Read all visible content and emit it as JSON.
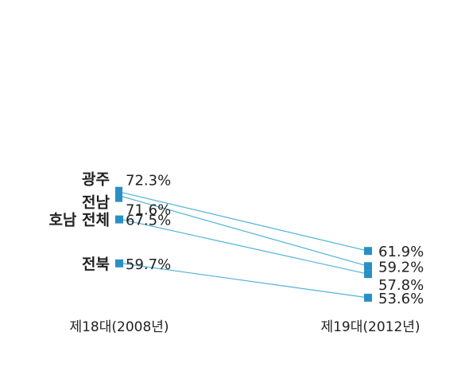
{
  "chart_data": {
    "type": "line",
    "categories": [
      "제18대(2008년)",
      "제19대(2012년)"
    ],
    "series": [
      {
        "name": "광주",
        "values": [
          72.3,
          61.9
        ],
        "labels": [
          "72.3%",
          "61.9%"
        ]
      },
      {
        "name": "전남",
        "values": [
          71.6,
          59.2
        ],
        "labels": [
          "71.6%",
          "59.2%"
        ]
      },
      {
        "name": "호남 전체",
        "values": [
          67.5,
          57.8
        ],
        "labels": [
          "67.5%",
          "57.8%"
        ]
      },
      {
        "name": "전북",
        "values": [
          59.7,
          53.6
        ],
        "labels": [
          "59.7%",
          "53.6%"
        ]
      }
    ],
    "unit": "%",
    "colors": {
      "line": "#4fb3d9",
      "marker": "#2a8fc4",
      "text": "#222222"
    }
  }
}
